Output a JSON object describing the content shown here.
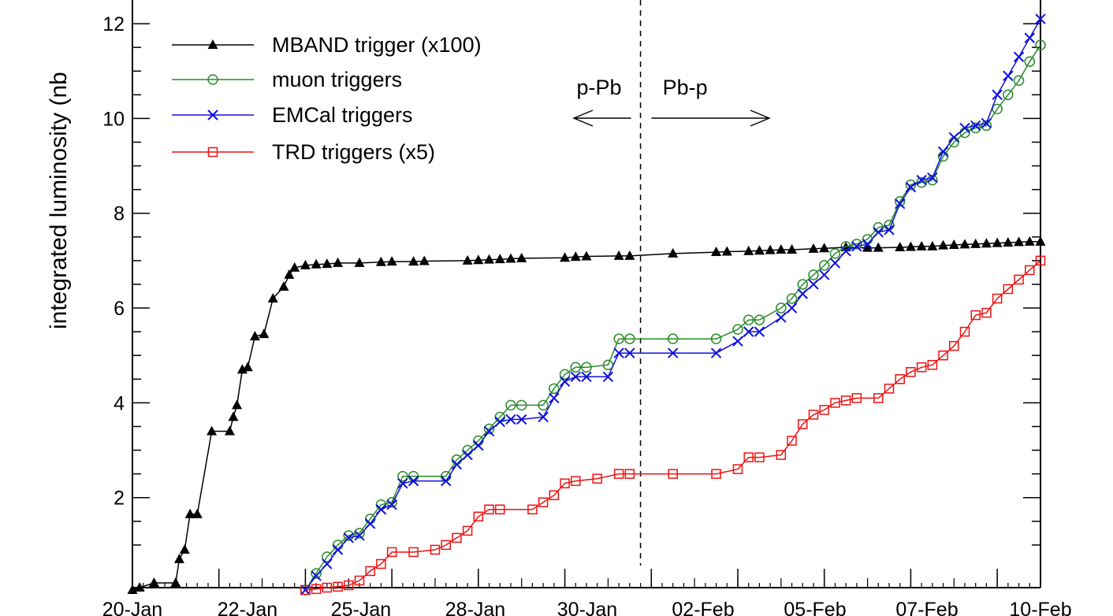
{
  "chart_data": {
    "type": "line",
    "title": "",
    "xlabel": "",
    "ylabel": "integrated luminosity (nb",
    "xlim": [
      "2013-01-20",
      "2013-02-10"
    ],
    "ylim": [
      0.1,
      12.5
    ],
    "grid": false,
    "legend_position": "top-left",
    "x_ticks": [
      "20-Jan",
      "22-Jan",
      "25-Jan",
      "28-Jan",
      "30-Jan",
      "02-Feb",
      "05-Feb",
      "07-Feb",
      "10-Feb"
    ],
    "x_tick_dates": [
      "2013-01-20",
      "2013-01-22",
      "2013-01-24",
      "2013-01-26",
      "2013-01-28",
      "2013-01-30",
      "2013-02-01",
      "2013-02-03",
      "2013-02-05",
      "2013-02-07",
      "2013-02-09"
    ],
    "y_ticks": [
      2,
      4,
      6,
      8,
      10,
      12
    ],
    "divider_date": "2013-01-31T18:00",
    "annotations": [
      {
        "text": "p-Pb",
        "arrow": "left"
      },
      {
        "text": "Pb-p",
        "arrow": "right"
      }
    ],
    "series": [
      {
        "name": "MBAND trigger (x100)",
        "color": "#000000",
        "marker": "triangle",
        "points": [
          [
            "2013-01-20T00:00",
            0.05
          ],
          [
            "2013-01-20T04:00",
            0.1
          ],
          [
            "2013-01-20T12:00",
            0.2
          ],
          [
            "2013-01-21T00:00",
            0.2
          ],
          [
            "2013-01-21T02:00",
            0.7
          ],
          [
            "2013-01-21T05:00",
            0.9
          ],
          [
            "2013-01-21T08:00",
            1.65
          ],
          [
            "2013-01-21T12:00",
            1.65
          ],
          [
            "2013-01-21T20:00",
            3.4
          ],
          [
            "2013-01-22T06:00",
            3.4
          ],
          [
            "2013-01-22T08:00",
            3.7
          ],
          [
            "2013-01-22T10:00",
            3.95
          ],
          [
            "2013-01-22T13:00",
            4.7
          ],
          [
            "2013-01-22T16:00",
            4.75
          ],
          [
            "2013-01-22T20:00",
            5.4
          ],
          [
            "2013-01-23T01:00",
            5.45
          ],
          [
            "2013-01-23T06:00",
            6.2
          ],
          [
            "2013-01-23T12:00",
            6.45
          ],
          [
            "2013-01-23T15:00",
            6.7
          ],
          [
            "2013-01-23T18:00",
            6.85
          ],
          [
            "2013-01-24T00:00",
            6.9
          ],
          [
            "2013-01-24T06:00",
            6.92
          ],
          [
            "2013-01-24T12:00",
            6.93
          ],
          [
            "2013-01-24T18:00",
            6.95
          ],
          [
            "2013-01-25T06:00",
            6.95
          ],
          [
            "2013-01-25T18:00",
            6.97
          ],
          [
            "2013-01-26T00:00",
            6.98
          ],
          [
            "2013-01-26T12:00",
            6.98
          ],
          [
            "2013-01-26T18:00",
            6.99
          ],
          [
            "2013-01-27T18:00",
            7.0
          ],
          [
            "2013-01-28T00:00",
            7.01
          ],
          [
            "2013-01-28T06:00",
            7.02
          ],
          [
            "2013-01-28T12:00",
            7.03
          ],
          [
            "2013-01-28T18:00",
            7.04
          ],
          [
            "2013-01-29T00:00",
            7.05
          ],
          [
            "2013-01-30T00:00",
            7.06
          ],
          [
            "2013-01-30T06:00",
            7.08
          ],
          [
            "2013-01-30T12:00",
            7.09
          ],
          [
            "2013-01-31T06:00",
            7.1
          ],
          [
            "2013-01-31T12:00",
            7.1
          ],
          [
            "2013-02-01T12:00",
            7.15
          ],
          [
            "2013-02-02T12:00",
            7.18
          ],
          [
            "2013-02-02T18:00",
            7.19
          ],
          [
            "2013-02-03T06:00",
            7.2
          ],
          [
            "2013-02-03T12:00",
            7.21
          ],
          [
            "2013-02-03T18:00",
            7.22
          ],
          [
            "2013-02-04T00:00",
            7.23
          ],
          [
            "2013-02-04T06:00",
            7.23
          ],
          [
            "2013-02-04T18:00",
            7.25
          ],
          [
            "2013-02-05T00:00",
            7.26
          ],
          [
            "2013-02-05T12:00",
            7.28
          ],
          [
            "2013-02-06T00:00",
            7.27
          ],
          [
            "2013-02-06T06:00",
            7.27
          ],
          [
            "2013-02-06T18:00",
            7.28
          ],
          [
            "2013-02-07T00:00",
            7.29
          ],
          [
            "2013-02-07T06:00",
            7.3
          ],
          [
            "2013-02-07T12:00",
            7.3
          ],
          [
            "2013-02-07T18:00",
            7.32
          ],
          [
            "2013-02-08T00:00",
            7.33
          ],
          [
            "2013-02-08T06:00",
            7.34
          ],
          [
            "2013-02-08T12:00",
            7.35
          ],
          [
            "2013-02-08T18:00",
            7.36
          ],
          [
            "2013-02-09T00:00",
            7.37
          ],
          [
            "2013-02-09T06:00",
            7.38
          ],
          [
            "2013-02-09T12:00",
            7.39
          ],
          [
            "2013-02-09T18:00",
            7.4
          ],
          [
            "2013-02-10T00:00",
            7.4
          ]
        ]
      },
      {
        "name": "muon triggers",
        "color": "#2a8a2a",
        "marker": "circle",
        "points": [
          [
            "2013-01-24T00:00",
            0.05
          ],
          [
            "2013-01-24T06:00",
            0.4
          ],
          [
            "2013-01-24T12:00",
            0.75
          ],
          [
            "2013-01-24T18:00",
            1.0
          ],
          [
            "2013-01-25T00:00",
            1.2
          ],
          [
            "2013-01-25T06:00",
            1.25
          ],
          [
            "2013-01-25T12:00",
            1.55
          ],
          [
            "2013-01-25T18:00",
            1.85
          ],
          [
            "2013-01-26T00:00",
            1.9
          ],
          [
            "2013-01-26T06:00",
            2.45
          ],
          [
            "2013-01-26T12:00",
            2.45
          ],
          [
            "2013-01-27T06:00",
            2.45
          ],
          [
            "2013-01-27T12:00",
            2.8
          ],
          [
            "2013-01-27T18:00",
            3.0
          ],
          [
            "2013-01-28T00:00",
            3.2
          ],
          [
            "2013-01-28T06:00",
            3.45
          ],
          [
            "2013-01-28T12:00",
            3.7
          ],
          [
            "2013-01-28T18:00",
            3.95
          ],
          [
            "2013-01-29T00:00",
            3.95
          ],
          [
            "2013-01-29T12:00",
            3.95
          ],
          [
            "2013-01-29T18:00",
            4.3
          ],
          [
            "2013-01-30T00:00",
            4.6
          ],
          [
            "2013-01-30T06:00",
            4.75
          ],
          [
            "2013-01-30T12:00",
            4.75
          ],
          [
            "2013-01-31T00:00",
            4.8
          ],
          [
            "2013-01-31T06:00",
            5.35
          ],
          [
            "2013-01-31T12:00",
            5.35
          ],
          [
            "2013-02-01T12:00",
            5.35
          ],
          [
            "2013-02-02T12:00",
            5.35
          ],
          [
            "2013-02-03T00:00",
            5.55
          ],
          [
            "2013-02-03T06:00",
            5.75
          ],
          [
            "2013-02-03T12:00",
            5.75
          ],
          [
            "2013-02-04T00:00",
            6.0
          ],
          [
            "2013-02-04T06:00",
            6.2
          ],
          [
            "2013-02-04T12:00",
            6.5
          ],
          [
            "2013-02-04T18:00",
            6.7
          ],
          [
            "2013-02-05T00:00",
            6.9
          ],
          [
            "2013-02-05T06:00",
            7.15
          ],
          [
            "2013-02-05T12:00",
            7.3
          ],
          [
            "2013-02-05T18:00",
            7.35
          ],
          [
            "2013-02-06T00:00",
            7.45
          ],
          [
            "2013-02-06T06:00",
            7.7
          ],
          [
            "2013-02-06T12:00",
            7.75
          ],
          [
            "2013-02-06T18:00",
            8.25
          ],
          [
            "2013-02-07T00:00",
            8.6
          ],
          [
            "2013-02-07T06:00",
            8.65
          ],
          [
            "2013-02-07T12:00",
            8.7
          ],
          [
            "2013-02-07T18:00",
            9.2
          ],
          [
            "2013-02-08T00:00",
            9.5
          ],
          [
            "2013-02-08T06:00",
            9.7
          ],
          [
            "2013-02-08T12:00",
            9.8
          ],
          [
            "2013-02-08T18:00",
            9.85
          ],
          [
            "2013-02-09T00:00",
            10.2
          ],
          [
            "2013-02-09T06:00",
            10.5
          ],
          [
            "2013-02-09T12:00",
            10.8
          ],
          [
            "2013-02-09T18:00",
            11.2
          ],
          [
            "2013-02-10T00:00",
            11.55
          ]
        ]
      },
      {
        "name": "EMCal triggers",
        "color": "#1010dd",
        "marker": "cross",
        "points": [
          [
            "2013-01-24T00:00",
            0.05
          ],
          [
            "2013-01-24T06:00",
            0.35
          ],
          [
            "2013-01-24T12:00",
            0.6
          ],
          [
            "2013-01-24T18:00",
            0.9
          ],
          [
            "2013-01-25T00:00",
            1.15
          ],
          [
            "2013-01-25T06:00",
            1.2
          ],
          [
            "2013-01-25T12:00",
            1.45
          ],
          [
            "2013-01-25T18:00",
            1.75
          ],
          [
            "2013-01-26T00:00",
            1.85
          ],
          [
            "2013-01-26T06:00",
            2.3
          ],
          [
            "2013-01-26T12:00",
            2.35
          ],
          [
            "2013-01-27T06:00",
            2.35
          ],
          [
            "2013-01-27T12:00",
            2.7
          ],
          [
            "2013-01-27T18:00",
            2.9
          ],
          [
            "2013-01-28T00:00",
            3.1
          ],
          [
            "2013-01-28T06:00",
            3.4
          ],
          [
            "2013-01-28T12:00",
            3.6
          ],
          [
            "2013-01-28T18:00",
            3.65
          ],
          [
            "2013-01-29T00:00",
            3.65
          ],
          [
            "2013-01-29T12:00",
            3.7
          ],
          [
            "2013-01-29T18:00",
            4.1
          ],
          [
            "2013-01-30T00:00",
            4.45
          ],
          [
            "2013-01-30T06:00",
            4.55
          ],
          [
            "2013-01-30T12:00",
            4.55
          ],
          [
            "2013-01-31T00:00",
            4.55
          ],
          [
            "2013-01-31T06:00",
            5.05
          ],
          [
            "2013-01-31T12:00",
            5.05
          ],
          [
            "2013-02-01T12:00",
            5.05
          ],
          [
            "2013-02-02T12:00",
            5.05
          ],
          [
            "2013-02-03T00:00",
            5.3
          ],
          [
            "2013-02-03T06:00",
            5.5
          ],
          [
            "2013-02-03T12:00",
            5.5
          ],
          [
            "2013-02-04T00:00",
            5.8
          ],
          [
            "2013-02-04T06:00",
            6.0
          ],
          [
            "2013-02-04T12:00",
            6.3
          ],
          [
            "2013-02-04T18:00",
            6.5
          ],
          [
            "2013-02-05T00:00",
            6.7
          ],
          [
            "2013-02-05T06:00",
            6.95
          ],
          [
            "2013-02-05T12:00",
            7.2
          ],
          [
            "2013-02-05T18:00",
            7.3
          ],
          [
            "2013-02-06T00:00",
            7.35
          ],
          [
            "2013-02-06T06:00",
            7.6
          ],
          [
            "2013-02-06T12:00",
            7.65
          ],
          [
            "2013-02-06T18:00",
            8.2
          ],
          [
            "2013-02-07T00:00",
            8.55
          ],
          [
            "2013-02-07T06:00",
            8.7
          ],
          [
            "2013-02-07T12:00",
            8.75
          ],
          [
            "2013-02-07T18:00",
            9.3
          ],
          [
            "2013-02-08T00:00",
            9.6
          ],
          [
            "2013-02-08T06:00",
            9.8
          ],
          [
            "2013-02-08T12:00",
            9.85
          ],
          [
            "2013-02-08T18:00",
            9.9
          ],
          [
            "2013-02-09T00:00",
            10.5
          ],
          [
            "2013-02-09T06:00",
            10.9
          ],
          [
            "2013-02-09T12:00",
            11.3
          ],
          [
            "2013-02-09T18:00",
            11.7
          ],
          [
            "2013-02-10T00:00",
            12.1
          ]
        ]
      },
      {
        "name": "TRD triggers (x5)",
        "color": "#ee1111",
        "marker": "square",
        "points": [
          [
            "2013-01-24T00:00",
            0.05
          ],
          [
            "2013-01-24T06:00",
            0.07
          ],
          [
            "2013-01-24T12:00",
            0.1
          ],
          [
            "2013-01-24T18:00",
            0.12
          ],
          [
            "2013-01-25T00:00",
            0.15
          ],
          [
            "2013-01-25T06:00",
            0.25
          ],
          [
            "2013-01-25T12:00",
            0.45
          ],
          [
            "2013-01-25T18:00",
            0.6
          ],
          [
            "2013-01-26T00:00",
            0.85
          ],
          [
            "2013-01-26T12:00",
            0.85
          ],
          [
            "2013-01-27T00:00",
            0.9
          ],
          [
            "2013-01-27T06:00",
            1.0
          ],
          [
            "2013-01-27T12:00",
            1.15
          ],
          [
            "2013-01-27T18:00",
            1.3
          ],
          [
            "2013-01-28T00:00",
            1.6
          ],
          [
            "2013-01-28T06:00",
            1.75
          ],
          [
            "2013-01-28T12:00",
            1.75
          ],
          [
            "2013-01-29T06:00",
            1.75
          ],
          [
            "2013-01-29T12:00",
            1.9
          ],
          [
            "2013-01-29T18:00",
            2.05
          ],
          [
            "2013-01-30T00:00",
            2.3
          ],
          [
            "2013-01-30T06:00",
            2.35
          ],
          [
            "2013-01-30T18:00",
            2.4
          ],
          [
            "2013-01-31T06:00",
            2.5
          ],
          [
            "2013-01-31T12:00",
            2.5
          ],
          [
            "2013-02-01T12:00",
            2.5
          ],
          [
            "2013-02-02T12:00",
            2.5
          ],
          [
            "2013-02-03T00:00",
            2.6
          ],
          [
            "2013-02-03T06:00",
            2.85
          ],
          [
            "2013-02-03T12:00",
            2.85
          ],
          [
            "2013-02-04T00:00",
            2.9
          ],
          [
            "2013-02-04T06:00",
            3.2
          ],
          [
            "2013-02-04T12:00",
            3.55
          ],
          [
            "2013-02-04T18:00",
            3.75
          ],
          [
            "2013-02-05T00:00",
            3.85
          ],
          [
            "2013-02-05T06:00",
            4.0
          ],
          [
            "2013-02-05T12:00",
            4.05
          ],
          [
            "2013-02-05T18:00",
            4.1
          ],
          [
            "2013-02-06T06:00",
            4.1
          ],
          [
            "2013-02-06T12:00",
            4.3
          ],
          [
            "2013-02-06T18:00",
            4.5
          ],
          [
            "2013-02-07T00:00",
            4.65
          ],
          [
            "2013-02-07T06:00",
            4.75
          ],
          [
            "2013-02-07T12:00",
            4.8
          ],
          [
            "2013-02-07T18:00",
            5.0
          ],
          [
            "2013-02-08T00:00",
            5.2
          ],
          [
            "2013-02-08T06:00",
            5.5
          ],
          [
            "2013-02-08T12:00",
            5.85
          ],
          [
            "2013-02-08T18:00",
            5.9
          ],
          [
            "2013-02-09T00:00",
            6.2
          ],
          [
            "2013-02-09T06:00",
            6.4
          ],
          [
            "2013-02-09T12:00",
            6.6
          ],
          [
            "2013-02-09T18:00",
            6.8
          ],
          [
            "2013-02-10T00:00",
            7.0
          ]
        ]
      }
    ]
  }
}
